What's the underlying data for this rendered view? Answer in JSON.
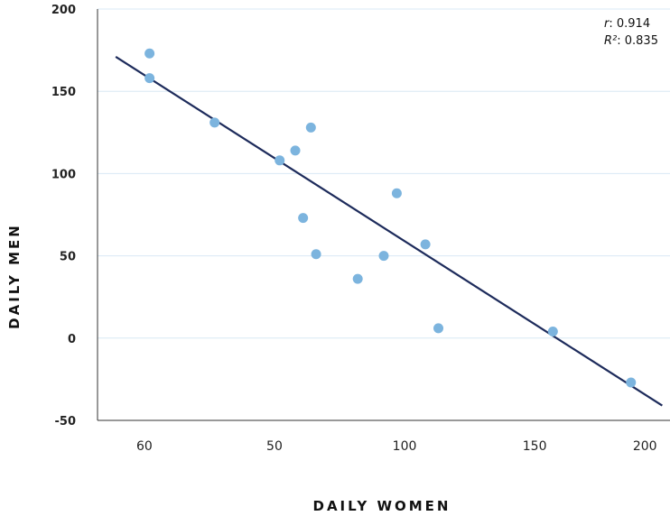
{
  "chart_data": {
    "type": "scatter",
    "xlabel": "DAILY WOMEN",
    "ylabel": "DAILY MEN",
    "x_tick_labels": [
      "60",
      "50",
      "100",
      "150",
      "200"
    ],
    "y_ticks": [
      200,
      150,
      100,
      50,
      0,
      -50
    ],
    "y_tick_labels": [
      "200",
      "150",
      "100",
      "50",
      "0",
      "-50"
    ],
    "ylim": [
      -50,
      200
    ],
    "grid": "horizontal",
    "points": [
      {
        "x": 30,
        "y": 173
      },
      {
        "x": 30,
        "y": 158
      },
      {
        "x": 55,
        "y": 131
      },
      {
        "x": 80,
        "y": 108
      },
      {
        "x": 86,
        "y": 114
      },
      {
        "x": 92,
        "y": 128
      },
      {
        "x": 89,
        "y": 73
      },
      {
        "x": 94,
        "y": 51
      },
      {
        "x": 110,
        "y": 36
      },
      {
        "x": 120,
        "y": 50
      },
      {
        "x": 125,
        "y": 88
      },
      {
        "x": 136,
        "y": 57
      },
      {
        "x": 141,
        "y": 6
      },
      {
        "x": 185,
        "y": 4
      },
      {
        "x": 215,
        "y": -27
      }
    ],
    "trendline": {
      "x": [
        17,
        227
      ],
      "y": [
        171,
        -41
      ]
    },
    "stats": {
      "r_label": "r",
      "r_value": ": 0.914",
      "r2_label": "R²",
      "r2_value": ": 0.835"
    },
    "colors": {
      "points": "#7cb4de",
      "trendline": "#1d2b5b",
      "grid": "#d8e8f4",
      "axis": "#333333"
    }
  }
}
